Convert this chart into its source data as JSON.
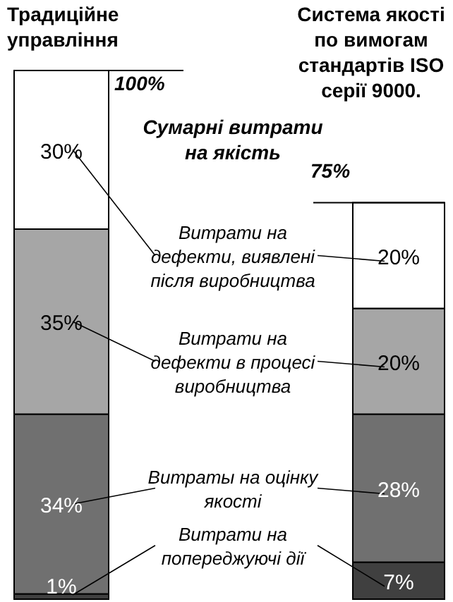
{
  "chart_data": {
    "type": "bar",
    "stacked": true,
    "categories": [
      "Традиційне управління",
      "Система якості по вимогам стандартів ISO серії 9000."
    ],
    "ylim": [
      0,
      100
    ],
    "legend": "center",
    "series": [
      {
        "name": "Витрати на попереджуючі дії",
        "color": "#404040",
        "values": [
          1,
          7
        ],
        "value_labels": [
          "1%",
          "7%"
        ]
      },
      {
        "name": "Витраты на оцінку якості",
        "color": "#707070",
        "values": [
          34,
          28
        ],
        "value_labels": [
          "34%",
          "28%"
        ]
      },
      {
        "name": "Витрати на дефекти в процесі виробництва",
        "color": "#a6a6a6",
        "values": [
          35,
          20
        ],
        "value_labels": [
          "35%",
          "20%"
        ]
      },
      {
        "name": "Витрати на дефекти, виявлені після виробництва",
        "color": "#ffffff",
        "values": [
          30,
          20
        ],
        "value_labels": [
          "30%",
          "20%"
        ]
      }
    ],
    "totals": [
      "100%",
      "75%"
    ],
    "annotations": [
      "Сумарні витрати на якість"
    ]
  }
}
